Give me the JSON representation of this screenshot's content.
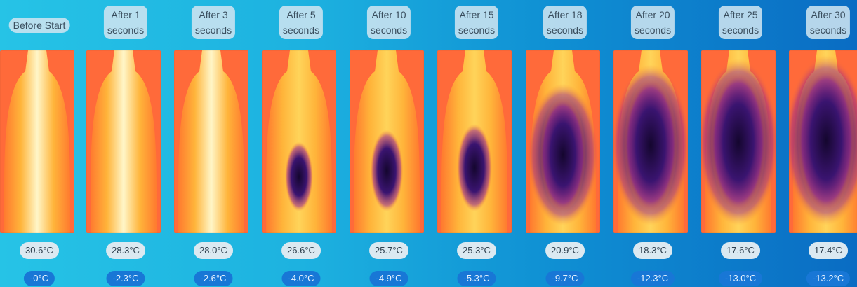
{
  "frames": [
    {
      "title": [
        "Before Start"
      ],
      "temp": "30.6°C",
      "drop": "-0°C",
      "cold": 0.0
    },
    {
      "title": [
        "After  1",
        "seconds"
      ],
      "temp": "28.3°C",
      "drop": "-2.3°C",
      "cold": 0.05
    },
    {
      "title": [
        "After  3",
        "seconds"
      ],
      "temp": "28.0°C",
      "drop": "-2.6°C",
      "cold": 0.1
    },
    {
      "title": [
        "After  5",
        "seconds"
      ],
      "temp": "26.6°C",
      "drop": "-4.0°C",
      "cold": 0.35
    },
    {
      "title": [
        "After 10",
        "seconds"
      ],
      "temp": "25.7°C",
      "drop": "-4.9°C",
      "cold": 0.45
    },
    {
      "title": [
        "After 15",
        "seconds"
      ],
      "temp": "25.3°C",
      "drop": "-5.3°C",
      "cold": 0.5
    },
    {
      "title": [
        "After 18",
        "seconds"
      ],
      "temp": "20.9°C",
      "drop": "-9.7°C",
      "cold": 0.72
    },
    {
      "title": [
        "After 20",
        "seconds"
      ],
      "temp": "18.3°C",
      "drop": "-12.3°C",
      "cold": 0.88
    },
    {
      "title": [
        "After 25",
        "seconds"
      ],
      "temp": "17.6°C",
      "drop": "-13.0°C",
      "cold": 0.93
    },
    {
      "title": [
        "After 30",
        "seconds"
      ],
      "temp": "17.4°C",
      "drop": "-13.2°C",
      "cold": 0.96
    }
  ]
}
